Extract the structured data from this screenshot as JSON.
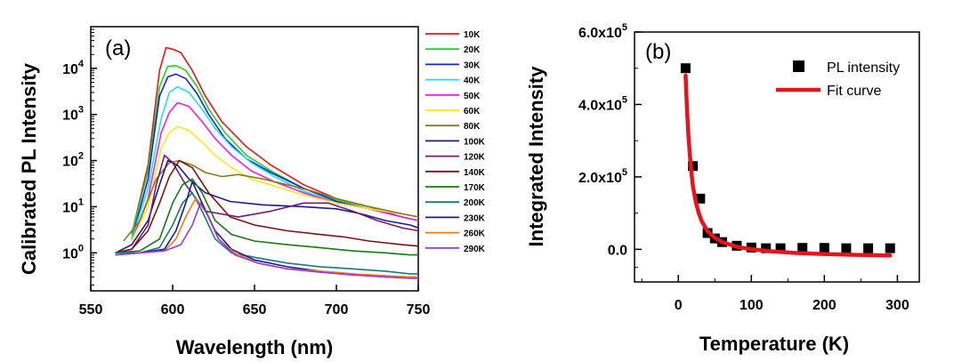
{
  "chart_data": [
    {
      "panel": "(a)",
      "type": "line",
      "xlabel": "Wavelength (nm)",
      "ylabel": "Calibrated PL Intensity",
      "xlim": [
        550,
        750
      ],
      "ylim": [
        0.15,
        80000
      ],
      "y_scale": "log",
      "x_ticks": [
        550,
        600,
        650,
        700,
        750
      ],
      "y_ticks": [
        {
          "value": 1,
          "base": "10",
          "exp": "0"
        },
        {
          "value": 10,
          "base": "10",
          "exp": "1"
        },
        {
          "value": 100,
          "base": "10",
          "exp": "2"
        },
        {
          "value": 1000,
          "base": "10",
          "exp": "3"
        },
        {
          "value": 10000,
          "base": "10",
          "exp": "4"
        }
      ],
      "legend_placement": "right, outside plot",
      "series": [
        {
          "name": "10K",
          "color": "#e8141c",
          "x": [
            575,
            585,
            592,
            596,
            600,
            605,
            612,
            620,
            630,
            645,
            660,
            680,
            700,
            720,
            740,
            750
          ],
          "y": [
            2.5,
            80,
            9000,
            28000,
            26000,
            22000,
            9000,
            2500,
            700,
            200,
            80,
            30,
            15,
            10,
            6,
            5
          ]
        },
        {
          "name": "20K",
          "color": "#21d321",
          "x": [
            575,
            585,
            592,
            597,
            602,
            608,
            615,
            622,
            632,
            645,
            660,
            680,
            700,
            720,
            740,
            750
          ],
          "y": [
            2.5,
            60,
            4000,
            11000,
            11500,
            9000,
            4000,
            1300,
            400,
            130,
            60,
            25,
            14,
            10,
            7,
            6
          ]
        },
        {
          "name": "30K",
          "color": "#1524d6",
          "x": [
            575,
            585,
            592,
            597,
            602,
            608,
            615,
            622,
            632,
            645,
            660,
            680,
            700,
            720,
            740,
            750
          ],
          "y": [
            2,
            40,
            2500,
            6500,
            7500,
            6000,
            2800,
            1000,
            300,
            110,
            55,
            25,
            13,
            9,
            6,
            5
          ]
        },
        {
          "name": "40K",
          "color": "#22e0e4",
          "x": [
            575,
            585,
            593,
            598,
            603,
            610,
            618,
            626,
            636,
            648,
            662,
            680,
            700,
            720,
            740,
            750
          ],
          "y": [
            2,
            25,
            800,
            3000,
            4000,
            3000,
            1300,
            500,
            200,
            90,
            45,
            22,
            12,
            9,
            6,
            5
          ]
        },
        {
          "name": "50K",
          "color": "#ec1fe6",
          "x": [
            575,
            585,
            593,
            598,
            603,
            610,
            618,
            626,
            636,
            648,
            662,
            680,
            700,
            720,
            740,
            750
          ],
          "y": [
            1.8,
            15,
            400,
            1100,
            1800,
            1500,
            700,
            300,
            130,
            60,
            35,
            20,
            12,
            9,
            6,
            5
          ]
        },
        {
          "name": "60K",
          "color": "#eded1e",
          "x": [
            575,
            585,
            593,
            598,
            603,
            610,
            618,
            626,
            636,
            648,
            662,
            680,
            700,
            720,
            740,
            750
          ],
          "y": [
            1.8,
            10,
            180,
            400,
            550,
            450,
            250,
            130,
            70,
            40,
            28,
            18,
            12,
            9,
            7,
            6
          ]
        },
        {
          "name": "80K",
          "color": "#8a7b14",
          "x": [
            570,
            580,
            590,
            598,
            604,
            612,
            620,
            630,
            640,
            655,
            670,
            685,
            700,
            720,
            740,
            750
          ],
          "y": [
            1.8,
            5,
            40,
            90,
            100,
            80,
            55,
            45,
            50,
            40,
            30,
            22,
            15,
            10,
            7,
            6
          ]
        },
        {
          "name": "100K",
          "color": "#1b1b8a",
          "x": [
            565,
            575,
            585,
            592,
            597,
            603,
            610,
            620,
            635,
            655,
            680,
            700,
            715,
            730,
            745,
            750
          ],
          "y": [
            1,
            1.5,
            5,
            30,
            100,
            80,
            40,
            20,
            13,
            11,
            10,
            9,
            7,
            5,
            4,
            3.5
          ]
        },
        {
          "name": "120K",
          "color": "#7a1677",
          "x": [
            565,
            575,
            585,
            590,
            595,
            600,
            608,
            620,
            640,
            660,
            680,
            695,
            710,
            725,
            740,
            750
          ],
          "y": [
            1,
            1.2,
            4,
            30,
            130,
            90,
            30,
            8,
            6,
            8,
            12,
            12,
            8,
            5,
            3.5,
            3
          ]
        },
        {
          "name": "140K",
          "color": "#7a1414",
          "x": [
            565,
            575,
            585,
            592,
            598,
            604,
            612,
            622,
            635,
            650,
            670,
            690,
            705,
            720,
            740,
            750
          ],
          "y": [
            1,
            1.2,
            3,
            12,
            45,
            100,
            70,
            20,
            6,
            4,
            3,
            2.5,
            2.2,
            1.8,
            1.5,
            1.4
          ]
        },
        {
          "name": "170K",
          "color": "#167a16",
          "x": [
            565,
            580,
            592,
            600,
            606,
            612,
            618,
            626,
            636,
            650,
            670,
            690,
            710,
            730,
            745,
            750
          ],
          "y": [
            1,
            1.1,
            2,
            12,
            30,
            40,
            20,
            5,
            2.5,
            1.8,
            1.5,
            1.3,
            1.1,
            1,
            0.9,
            0.9
          ]
        },
        {
          "name": "200K",
          "color": "#157a7a",
          "x": [
            565,
            580,
            592,
            600,
            606,
            612,
            618,
            626,
            636,
            650,
            670,
            690,
            710,
            730,
            745,
            750
          ],
          "y": [
            1,
            1,
            1.3,
            4,
            12,
            20,
            8,
            2,
            1,
            0.8,
            0.6,
            0.5,
            0.45,
            0.4,
            0.35,
            0.35
          ]
        },
        {
          "name": "230K",
          "color": "#1a1a8e",
          "x": [
            565,
            580,
            595,
            602,
            608,
            612,
            618,
            626,
            636,
            650,
            670,
            690,
            710,
            730,
            745,
            750
          ],
          "y": [
            0.9,
            1,
            1.2,
            3,
            12,
            35,
            12,
            3,
            1.2,
            0.7,
            0.5,
            0.4,
            0.35,
            0.3,
            0.3,
            0.3
          ]
        },
        {
          "name": "260K",
          "color": "#ef7a1a",
          "x": [
            565,
            580,
            595,
            602,
            608,
            614,
            620,
            628,
            638,
            652,
            670,
            690,
            710,
            730,
            745,
            750
          ],
          "y": [
            0.9,
            1,
            1.1,
            2,
            6,
            15,
            8,
            2,
            1,
            0.6,
            0.45,
            0.4,
            0.35,
            0.32,
            0.3,
            0.3
          ]
        },
        {
          "name": "290K",
          "color": "#9a38e0",
          "x": [
            565,
            580,
            595,
            605,
            612,
            617,
            622,
            628,
            638,
            652,
            670,
            690,
            710,
            730,
            745,
            750
          ],
          "y": [
            0.9,
            1,
            1.1,
            1.5,
            4,
            12,
            6,
            2,
            0.9,
            0.6,
            0.45,
            0.38,
            0.33,
            0.3,
            0.28,
            0.28
          ]
        }
      ]
    },
    {
      "panel": "(b)",
      "type": "scatter",
      "xlabel": "Temperature (K)",
      "ylabel": "Integrated Intensity",
      "xlim": [
        -60,
        330
      ],
      "ylim": [
        -90000,
        600000
      ],
      "x_ticks": [
        0,
        100,
        200,
        300
      ],
      "y_ticks": [
        {
          "value": 0,
          "mant": "0.0",
          "exp": ""
        },
        {
          "value": 200000,
          "mant": "2.0x10",
          "exp": "5"
        },
        {
          "value": 400000,
          "mant": "4.0x10",
          "exp": "5"
        },
        {
          "value": 600000,
          "mant": "6.0x10",
          "exp": "5"
        }
      ],
      "legend_placement": "top-right",
      "series": [
        {
          "name": "PL intensity",
          "kind": "scatter",
          "color": "#000000",
          "x": [
            10,
            20,
            30,
            40,
            50,
            60,
            80,
            100,
            120,
            140,
            170,
            200,
            230,
            260,
            290
          ],
          "y": [
            500000,
            230000,
            140000,
            45000,
            30000,
            20000,
            10000,
            5000,
            3000,
            3000,
            4000,
            4000,
            3000,
            3000,
            3000
          ]
        },
        {
          "name": "Fit curve",
          "kind": "line",
          "color": "#e8141c",
          "x": [
            10,
            12,
            14,
            16,
            18,
            20,
            24,
            28,
            32,
            40,
            50,
            60,
            80,
            100,
            130,
            160,
            200,
            240,
            290
          ],
          "y": [
            480000,
            380000,
            310000,
            255000,
            210000,
            175000,
            130000,
            100000,
            78000,
            50000,
            32000,
            20000,
            7000,
            0,
            -6000,
            -10000,
            -13000,
            -15000,
            -17000
          ]
        }
      ]
    }
  ]
}
